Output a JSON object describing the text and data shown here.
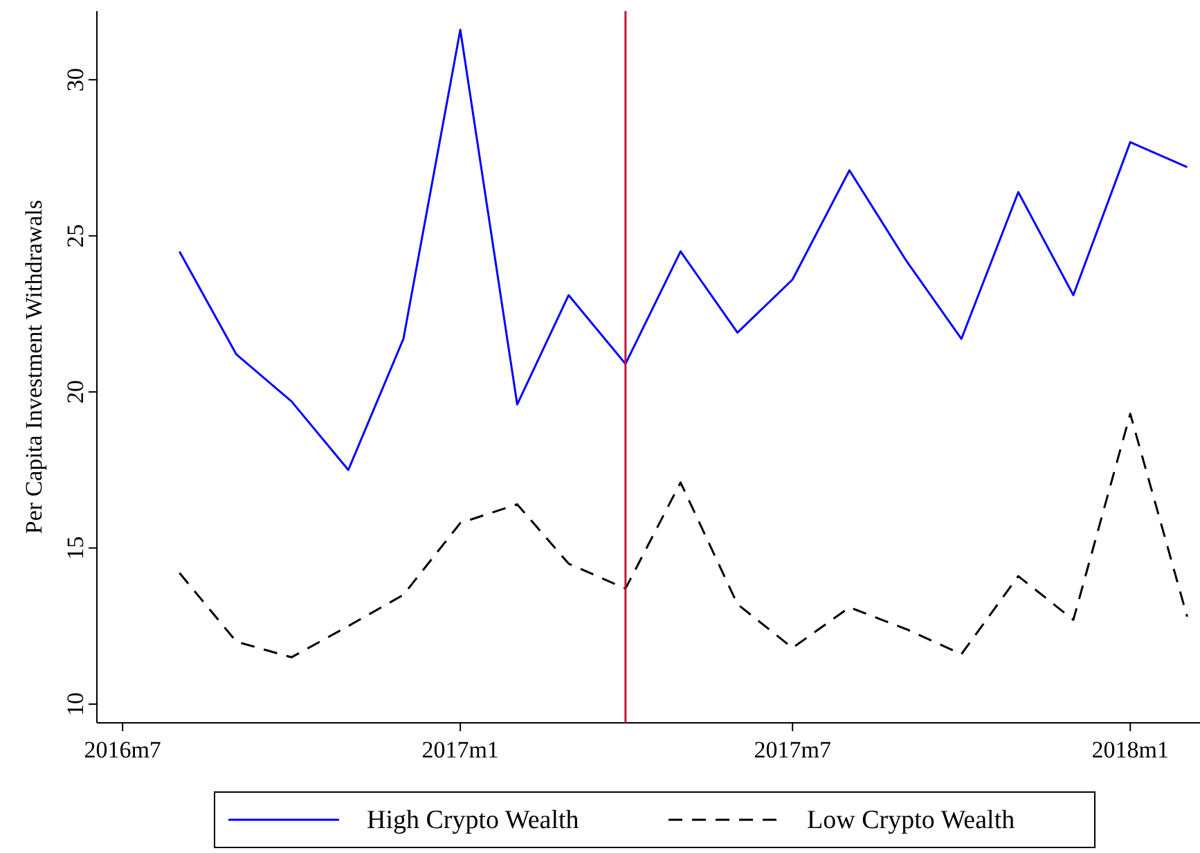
{
  "chart_data": {
    "type": "line",
    "ylabel": "Per Capita Investment Withdrawals",
    "x": [
      "2016-08",
      "2016-09",
      "2016-10",
      "2016-11",
      "2016-12",
      "2017-01",
      "2017-02",
      "2017-03",
      "2017-04",
      "2017-05",
      "2017-06",
      "2017-07",
      "2017-08",
      "2017-09",
      "2017-10",
      "2017-11",
      "2017-12",
      "2018-01",
      "2018-02"
    ],
    "series": [
      {
        "name": "High Crypto Wealth",
        "color": "#0000ff",
        "line_style": "solid",
        "values": [
          24.5,
          21.2,
          19.7,
          17.5,
          21.7,
          31.6,
          19.6,
          23.1,
          20.9,
          24.5,
          21.9,
          23.6,
          27.1,
          24.2,
          21.7,
          26.4,
          23.1,
          28.0,
          27.2
        ]
      },
      {
        "name": "Low Crypto Wealth",
        "color": "#000000",
        "line_style": "dashed",
        "values": [
          14.2,
          12.0,
          11.5,
          12.5,
          13.5,
          15.8,
          16.4,
          14.5,
          13.7,
          17.1,
          13.2,
          11.8,
          13.1,
          12.4,
          11.6,
          14.1,
          12.7,
          19.3,
          12.8
        ]
      }
    ],
    "xlim": [
      "2016-06-17",
      "2018-02-08"
    ],
    "xticks": [
      {
        "value": "2016-07",
        "label": "2016m7"
      },
      {
        "value": "2017-01",
        "label": "2017m1"
      },
      {
        "value": "2017-07",
        "label": "2017m7"
      },
      {
        "value": "2018-01",
        "label": "2018m1"
      }
    ],
    "ylim": [
      9.4,
      32.2
    ],
    "yticks": [
      10,
      15,
      20,
      25,
      30
    ],
    "ref_lines": [
      {
        "axis": "x",
        "value": "2017-04",
        "color": "#c0143c"
      }
    ],
    "grid": false,
    "legend": "bottom",
    "marker": "none"
  }
}
